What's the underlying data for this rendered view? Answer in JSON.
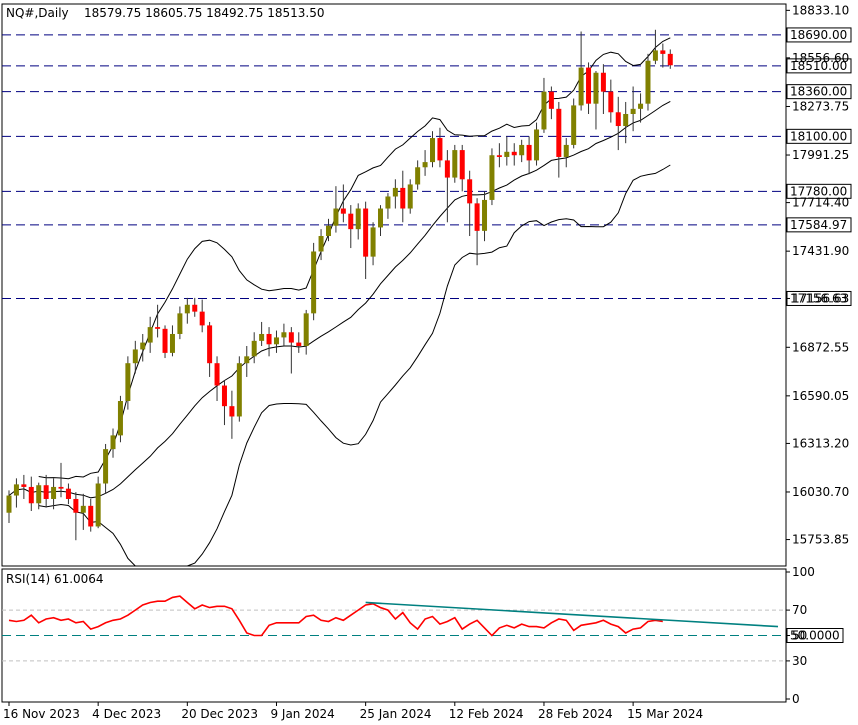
{
  "chart_data": {
    "type": "candlestick",
    "title": "NQ#,Daily",
    "ohlc_readout": "18579.75 18605.75 18492.75 18513.50",
    "colors": {
      "up": "#808000",
      "down": "#ff0000",
      "wick": "#333333",
      "bands": "#000000",
      "levels": "#000080",
      "rsi_line": "#ff0000",
      "rsi_trend": "#008080",
      "rsi_level": "#008080",
      "rsi_guides": "#c0c0c0"
    },
    "price_axis": {
      "min": 15600,
      "max": 18870,
      "ticks": [
        "18833.10",
        "18556.60",
        "18273.75",
        "17991.25",
        "17714.40",
        "17431.90",
        "17156.63",
        "16872.55",
        "16590.05",
        "16313.20",
        "16030.70",
        "15753.85"
      ]
    },
    "levels": [
      {
        "value": 18690.0,
        "label": "18690.00"
      },
      {
        "value": 18510.0,
        "label": "18510.00"
      },
      {
        "value": 18360.0,
        "label": "18360.00"
      },
      {
        "value": 18100.0,
        "label": "18100.00"
      },
      {
        "value": 17780.0,
        "label": "17780.00"
      },
      {
        "value": 17584.97,
        "label": "17584.97"
      },
      {
        "value": 17156.63,
        "label": "17156.63"
      }
    ],
    "x_labels": [
      "16 Nov 2023",
      "4 Dec 2023",
      "20 Dec 2023",
      "9 Jan 2024",
      "25 Jan 2024",
      "12 Feb 2024",
      "28 Feb 2024",
      "15 Mar 2024"
    ],
    "x_label_index": [
      0,
      12,
      24,
      36,
      48,
      60,
      72,
      84
    ],
    "candles": [
      [
        15910,
        16040,
        15850,
        16010
      ],
      [
        16010,
        16110,
        15940,
        16075
      ],
      [
        16075,
        16130,
        15990,
        16060
      ],
      [
        16060,
        16120,
        15920,
        15965
      ],
      [
        15965,
        16085,
        15930,
        16070
      ],
      [
        16070,
        16130,
        15940,
        15990
      ],
      [
        15990,
        16110,
        15930,
        16060
      ],
      [
        16060,
        16200,
        16000,
        16050
      ],
      [
        16050,
        16080,
        15960,
        15990
      ],
      [
        15990,
        16030,
        15750,
        15910
      ],
      [
        15910,
        16020,
        15810,
        15950
      ],
      [
        15950,
        15990,
        15800,
        15830
      ],
      [
        15830,
        16120,
        15820,
        16080
      ],
      [
        16080,
        16310,
        16020,
        16280
      ],
      [
        16280,
        16400,
        16230,
        16360
      ],
      [
        16360,
        16590,
        16320,
        16560
      ],
      [
        16560,
        16820,
        16510,
        16780
      ],
      [
        16780,
        16910,
        16720,
        16860
      ],
      [
        16860,
        16950,
        16790,
        16900
      ],
      [
        16900,
        17050,
        16840,
        16990
      ],
      [
        16990,
        17120,
        16930,
        16980
      ],
      [
        16980,
        17000,
        16810,
        16840
      ],
      [
        16840,
        17000,
        16820,
        16950
      ],
      [
        16950,
        17110,
        16920,
        17070
      ],
      [
        17070,
        17160,
        17010,
        17120
      ],
      [
        17120,
        17160,
        17050,
        17080
      ],
      [
        17080,
        17150,
        16960,
        17000
      ],
      [
        17000,
        17020,
        16700,
        16780
      ],
      [
        16780,
        16820,
        16560,
        16650
      ],
      [
        16650,
        16680,
        16420,
        16530
      ],
      [
        16530,
        16620,
        16340,
        16470
      ],
      [
        16470,
        16820,
        16440,
        16780
      ],
      [
        16780,
        16880,
        16700,
        16820
      ],
      [
        16820,
        16960,
        16780,
        16910
      ],
      [
        16910,
        17020,
        16880,
        16950
      ],
      [
        16950,
        16990,
        16820,
        16890
      ],
      [
        16890,
        16970,
        16840,
        16930
      ],
      [
        16930,
        17010,
        16880,
        16960
      ],
      [
        16960,
        16990,
        16720,
        16900
      ],
      [
        16900,
        16960,
        16840,
        16880
      ],
      [
        16880,
        17090,
        16830,
        17070
      ],
      [
        17070,
        17480,
        17030,
        17430
      ],
      [
        17430,
        17560,
        17380,
        17520
      ],
      [
        17520,
        17620,
        17490,
        17580
      ],
      [
        17580,
        17810,
        17540,
        17680
      ],
      [
        17680,
        17820,
        17600,
        17650
      ],
      [
        17650,
        17700,
        17450,
        17560
      ],
      [
        17560,
        17710,
        17500,
        17680
      ],
      [
        17680,
        17720,
        17270,
        17400
      ],
      [
        17400,
        17600,
        17350,
        17570
      ],
      [
        17570,
        17700,
        17520,
        17680
      ],
      [
        17680,
        17770,
        17620,
        17750
      ],
      [
        17750,
        17850,
        17680,
        17800
      ],
      [
        17800,
        17900,
        17600,
        17680
      ],
      [
        17680,
        17850,
        17650,
        17820
      ],
      [
        17820,
        17960,
        17790,
        17920
      ],
      [
        17920,
        18020,
        17870,
        17950
      ],
      [
        17950,
        18130,
        17920,
        18090
      ],
      [
        18090,
        18150,
        17920,
        17960
      ],
      [
        17960,
        18020,
        17600,
        17860
      ],
      [
        17860,
        18050,
        17830,
        18020
      ],
      [
        18020,
        18050,
        17780,
        17850
      ],
      [
        17850,
        17900,
        17520,
        17710
      ],
      [
        17710,
        17740,
        17350,
        17550
      ],
      [
        17550,
        17780,
        17490,
        17730
      ],
      [
        17730,
        18030,
        17700,
        17990
      ],
      [
        17990,
        18060,
        17920,
        17980
      ],
      [
        17980,
        18100,
        17930,
        18010
      ],
      [
        18010,
        18060,
        17930,
        17990
      ],
      [
        17990,
        18080,
        17950,
        18050
      ],
      [
        18050,
        18100,
        17880,
        17960
      ],
      [
        17960,
        18180,
        17930,
        18140
      ],
      [
        18140,
        18440,
        18120,
        18360
      ],
      [
        18360,
        18390,
        18200,
        18260
      ],
      [
        18260,
        18300,
        17860,
        17980
      ],
      [
        17980,
        18090,
        17920,
        18050
      ],
      [
        18050,
        18320,
        18030,
        18280
      ],
      [
        18280,
        18710,
        18250,
        18500
      ],
      [
        18500,
        18530,
        18230,
        18290
      ],
      [
        18290,
        18480,
        18140,
        18470
      ],
      [
        18470,
        18520,
        18230,
        18360
      ],
      [
        18360,
        18430,
        18180,
        18240
      ],
      [
        18240,
        18330,
        18020,
        18160
      ],
      [
        18160,
        18300,
        18060,
        18230
      ],
      [
        18230,
        18390,
        18130,
        18260
      ],
      [
        18260,
        18350,
        18180,
        18290
      ],
      [
        18290,
        18580,
        18250,
        18540
      ],
      [
        18540,
        18720,
        18520,
        18600
      ],
      [
        18600,
        18640,
        18500,
        18579.75
      ],
      [
        18579.75,
        18605.75,
        18492.75,
        18513.5
      ]
    ],
    "rsi": {
      "label": "RSI(14) 61.0064",
      "min": 0,
      "max": 100,
      "ticks": [
        "100",
        "70",
        "50",
        "30",
        "0"
      ],
      "level_label": "50.0000",
      "values": [
        62,
        61,
        62,
        66,
        60,
        63,
        64,
        62,
        63,
        60,
        61,
        55,
        57,
        60,
        62,
        63,
        66,
        70,
        74,
        76,
        77,
        77,
        80,
        81,
        76,
        71,
        74,
        72,
        73,
        73,
        71,
        62,
        52,
        50,
        50,
        58,
        60,
        60,
        60,
        60,
        65,
        66,
        62,
        61,
        64,
        62,
        66,
        70,
        74,
        75,
        72,
        70,
        63,
        68,
        60,
        55,
        63,
        65,
        59,
        61,
        64,
        55,
        59,
        62,
        56,
        50,
        56,
        58,
        56,
        59,
        57,
        57,
        56,
        60,
        63,
        62,
        54,
        58,
        59,
        60,
        62,
        59,
        57,
        52,
        55,
        56,
        61,
        62,
        61
      ]
    }
  }
}
